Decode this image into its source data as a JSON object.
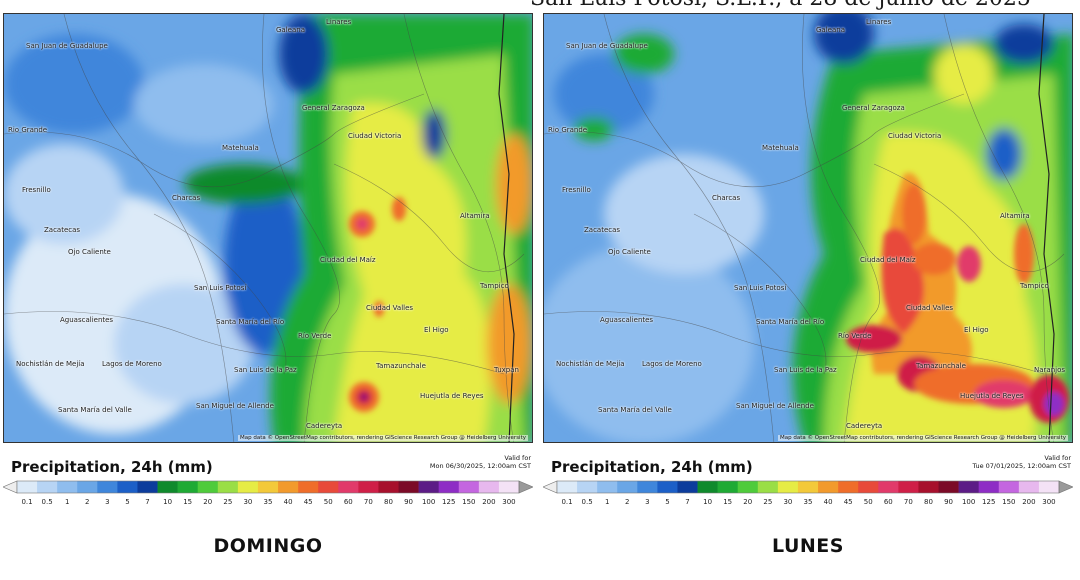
{
  "header": {
    "caption": "San Luis Potosí, S.L.P., a 28 de junio de 2025"
  },
  "color_scale": {
    "ticks": [
      "0.1",
      "0.5",
      "1",
      "2",
      "3",
      "5",
      "7",
      "10",
      "15",
      "20",
      "25",
      "30",
      "35",
      "40",
      "45",
      "50",
      "60",
      "70",
      "80",
      "90",
      "100",
      "125",
      "150",
      "200",
      "300"
    ],
    "colors": [
      "#dceaf8",
      "#b7d4f4",
      "#8fbdee",
      "#6aa6e6",
      "#3f86db",
      "#1c5fc7",
      "#0c3c9c",
      "#0f8a2c",
      "#1faa34",
      "#4fcb3b",
      "#9ade46",
      "#e6ec45",
      "#f3c93a",
      "#f29a2c",
      "#ef6d2a",
      "#e84a3a",
      "#e13a6a",
      "#cf1f47",
      "#a7102c",
      "#7b0a27",
      "#5c1c86",
      "#8e2dc5",
      "#c466e0",
      "#e7b8ee",
      "#f4e2f6"
    ]
  },
  "panels": [
    {
      "legend_title": "Precipitation, 24h (mm)",
      "valid_label": "Valid for",
      "valid_time": "Mon 06/30/2025, 12:00am CST",
      "day_label": "DOMINGO",
      "attribution": "Map data © OpenStreetMap contributors, rendering GIScience Research Group @ Heidelberg University",
      "places": [
        "San Juan de Guadalupe",
        "Galeana",
        "Linares",
        "General Zaragoza",
        "Rio Grande",
        "Matehuala",
        "Ciudad Victoria",
        "Fresnillo",
        "Charcas",
        "Zacatecas",
        "Ciudad del Maíz",
        "Altamira",
        "Ojo Caliente",
        "San Luis Potosí",
        "Ciudad Valles",
        "Tampico",
        "Aguascalientes",
        "Santa María del Río",
        "Río Verde",
        "El Higo",
        "Nochistlán de Mejía",
        "Lagos de Moreno",
        "San Luis de la Paz",
        "Tamazunchale",
        "Santa María del Valle",
        "San Miguel de Allende",
        "Huejutla de Reyes",
        "Tuxpan",
        "Cadereyta"
      ]
    },
    {
      "legend_title": "Precipitation, 24h (mm)",
      "valid_label": "Valid for",
      "valid_time": "Tue 07/01/2025, 12:00am CST",
      "day_label": "LUNES",
      "attribution": "Map data © OpenStreetMap contributors, rendering GIScience Research Group @ Heidelberg University",
      "places": [
        "San Juan de Guadalupe",
        "Galeana",
        "Linares",
        "General Zaragoza",
        "Rio Grande",
        "Matehuala",
        "Ciudad Victoria",
        "Fresnillo",
        "Charcas",
        "Zacatecas",
        "Ciudad del Maíz",
        "Altamira",
        "Ojo Caliente",
        "San Luis Potosí",
        "Ciudad Valles",
        "Tampico",
        "Aguascalientes",
        "Santa María del Río",
        "Río Verde",
        "El Higo",
        "Nochistlán de Mejía",
        "Lagos de Moreno",
        "San Luis de la Paz",
        "Tamazunchale",
        "Santa María del Valle",
        "San Miguel de Allende",
        "Huejutla de Reyes",
        "Naranjos",
        "Cadereyta"
      ]
    }
  ]
}
